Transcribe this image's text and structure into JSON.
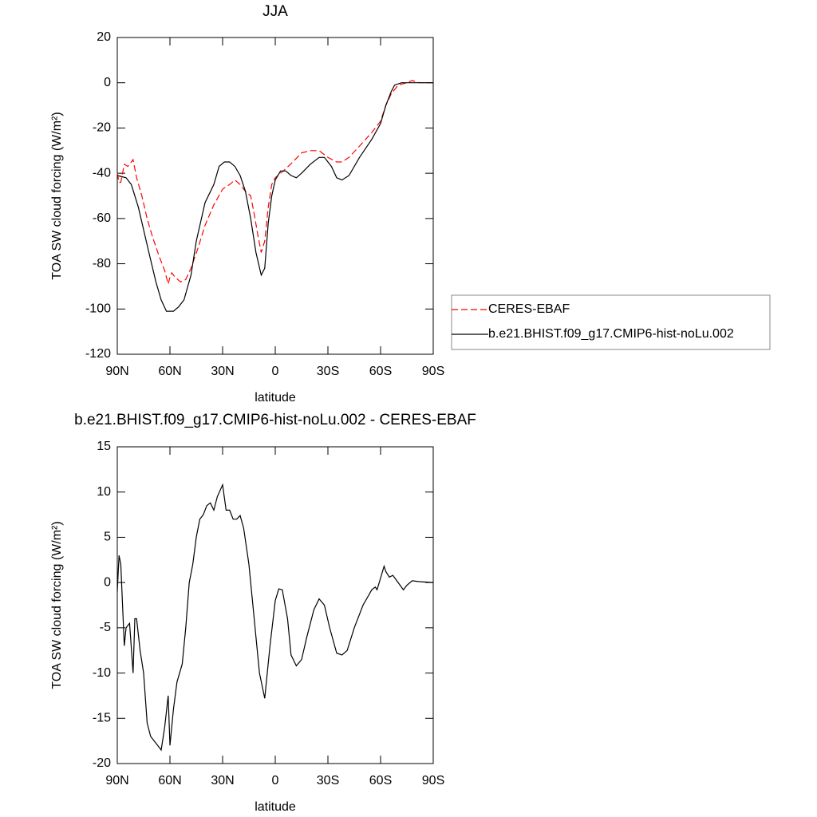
{
  "chart_data": [
    {
      "type": "line",
      "title": "JJA",
      "x_label": "latitude",
      "y_label": "TOA SW cloud forcing (W/m²)",
      "xlim": [
        90,
        -90
      ],
      "xticks": [
        {
          "value": 90,
          "label": "90N"
        },
        {
          "value": 60,
          "label": "60N"
        },
        {
          "value": 30,
          "label": "30N"
        },
        0,
        {
          "value": -30,
          "label": "30S"
        },
        {
          "value": -60,
          "label": "60S"
        },
        {
          "value": -90,
          "label": "90S"
        }
      ],
      "ylim": [
        -120,
        20
      ],
      "yticks": [
        20,
        0,
        -20,
        -40,
        -60,
        -80,
        -100,
        -120
      ],
      "legend": "outside right",
      "series": [
        {
          "name": "CERES-EBAF",
          "color": "#ff0000",
          "dash": true,
          "x": [
            90,
            89,
            88,
            86,
            84,
            81,
            79,
            76,
            73,
            70,
            66,
            63,
            61,
            60,
            59,
            57,
            54,
            51,
            48,
            44,
            40,
            35,
            30,
            26,
            23,
            20,
            17,
            14,
            12,
            10,
            8,
            6,
            4,
            2,
            0,
            -3,
            -6,
            -10,
            -15,
            -20,
            -25,
            -30,
            -35,
            -38,
            -42,
            -48,
            -55,
            -60,
            -63,
            -66,
            -70,
            -75,
            -78,
            -82,
            -90
          ],
          "values": [
            -40,
            -44,
            -44,
            -36,
            -37,
            -34,
            -42,
            -50,
            -60,
            -68,
            -77,
            -83,
            -89,
            -86,
            -84,
            -86,
            -88,
            -87,
            -82,
            -73,
            -63,
            -54,
            -47,
            -45,
            -43,
            -45,
            -48,
            -50,
            -58,
            -67,
            -75,
            -70,
            -55,
            -45,
            -42,
            -40,
            -38,
            -35,
            -31,
            -30,
            -30,
            -33,
            -35,
            -35,
            -33,
            -28,
            -22,
            -17,
            -10,
            -5,
            -1,
            0,
            1,
            0,
            0
          ]
        },
        {
          "name": "b.e21.BHIST.f09_g17.CMIP6-hist-noLu.002",
          "color": "#000000",
          "dash": false,
          "x": [
            90,
            85,
            82,
            78,
            75,
            72,
            68,
            65,
            62,
            58,
            55,
            52,
            48,
            45,
            40,
            35,
            32,
            29,
            26,
            23,
            20,
            17,
            14,
            11,
            8,
            6,
            4,
            2,
            0,
            -3,
            -6,
            -9,
            -12,
            -15,
            -20,
            -25,
            -28,
            -32,
            -35,
            -38,
            -42,
            -48,
            -55,
            -60,
            -63,
            -66,
            -68,
            -72,
            -80,
            -90
          ],
          "values": [
            -41,
            -42,
            -45,
            -55,
            -65,
            -75,
            -88,
            -96,
            -101,
            -101,
            -99,
            -96,
            -85,
            -70,
            -53,
            -45,
            -37,
            -35,
            -35,
            -37,
            -41,
            -48,
            -60,
            -75,
            -85,
            -82,
            -62,
            -50,
            -43,
            -39,
            -39,
            -41,
            -42,
            -40,
            -36,
            -33,
            -33,
            -37,
            -42,
            -43,
            -41,
            -33,
            -25,
            -18,
            -10,
            -4,
            -1,
            0,
            0,
            0
          ]
        }
      ]
    },
    {
      "type": "line",
      "title": "b.e21.BHIST.f09_g17.CMIP6-hist-noLu.002 - CERES-EBAF",
      "x_label": "latitude",
      "y_label": "TOA SW cloud forcing (W/m²)",
      "xlim": [
        90,
        -90
      ],
      "xticks": [
        {
          "value": 90,
          "label": "90N"
        },
        {
          "value": 60,
          "label": "60N"
        },
        {
          "value": 30,
          "label": "30N"
        },
        0,
        {
          "value": -30,
          "label": "30S"
        },
        {
          "value": -60,
          "label": "60S"
        },
        {
          "value": -90,
          "label": "90S"
        }
      ],
      "ylim": [
        -20,
        15
      ],
      "yticks": [
        15,
        10,
        5,
        0,
        -5,
        -10,
        -15,
        -20
      ],
      "series": [
        {
          "color": "#000000",
          "dash": false,
          "x": [
            90,
            89,
            88,
            86,
            85,
            83,
            81,
            80,
            79,
            77,
            75,
            73,
            71,
            69,
            67,
            65,
            63,
            61,
            60,
            58,
            56,
            53,
            51,
            49,
            47,
            45,
            43,
            41,
            39,
            37,
            35,
            33,
            30,
            28,
            26,
            24,
            22,
            20,
            18,
            15,
            12,
            9,
            6,
            3,
            0,
            -2,
            -4,
            -7,
            -9,
            -12,
            -15,
            -18,
            -22,
            -25,
            -28,
            -31,
            -35,
            -38,
            -41,
            -45,
            -50,
            -55,
            -57,
            -58,
            -60,
            -62,
            -63,
            -65,
            -67,
            -70,
            -73,
            -75,
            -78,
            -82,
            -90
          ],
          "values": [
            -1,
            3,
            2,
            -7,
            -5,
            -4.5,
            -10,
            -4,
            -4,
            -7.5,
            -10,
            -15.5,
            -17,
            -17.5,
            -18,
            -18.5,
            -16,
            -12.5,
            -18,
            -14,
            -11,
            -9,
            -5,
            0,
            2,
            5,
            7,
            7.5,
            8.5,
            8.8,
            8,
            9.5,
            10.8,
            8,
            8,
            7,
            7,
            7.4,
            6,
            2,
            -4,
            -10,
            -12.8,
            -7,
            -2,
            -0.7,
            -0.8,
            -4,
            -8,
            -9.2,
            -8.5,
            -6,
            -3,
            -1.8,
            -2.5,
            -5,
            -7.8,
            -8,
            -7.5,
            -5,
            -2.5,
            -0.8,
            -0.5,
            -0.8,
            0.5,
            1.8,
            1.2,
            0.6,
            0.8,
            0,
            -0.8,
            -0.3,
            0.2,
            0.1,
            0
          ]
        }
      ]
    }
  ]
}
